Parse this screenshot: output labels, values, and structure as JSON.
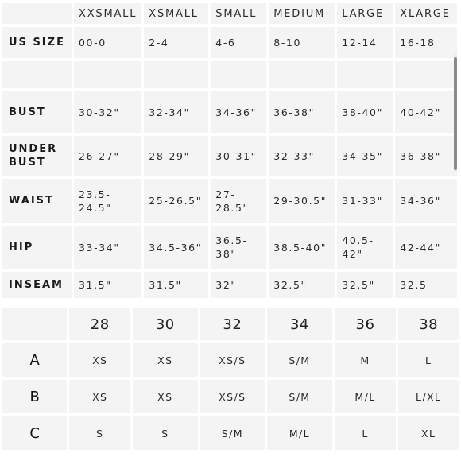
{
  "sizes": [
    "XXSMALL",
    "XSMALL",
    "SMALL",
    "MEDIUM",
    "LARGE",
    "XLARGE"
  ],
  "measurements": [
    {
      "label": "US SIZE",
      "values": [
        "00-0",
        "2-4",
        "4-6",
        "8-10",
        "12-14",
        "16-18"
      ]
    },
    {
      "label": "",
      "values": [
        "",
        "",
        "",
        "",
        "",
        ""
      ]
    },
    {
      "label": "BUST",
      "values": [
        "30-32\"",
        "32-34\"",
        "34-36\"",
        "36-38\"",
        "38-40\"",
        "40-42\""
      ]
    },
    {
      "label": "UNDER BUST",
      "values": [
        "26-27\"",
        "28-29\"",
        "30-31\"",
        "32-33\"",
        "34-35\"",
        "36-38\""
      ]
    },
    {
      "label": "WAIST",
      "values": [
        "23.5-24.5\"",
        "25-26.5\"",
        "27-28.5\"",
        "29-30.5\"",
        "31-33\"",
        "34-36\""
      ]
    },
    {
      "label": "HIP",
      "values": [
        "33-34\"",
        "34.5-36\"",
        "36.5-38\"",
        "38.5-40\"",
        "40.5-42\"",
        "42-44\""
      ]
    },
    {
      "label": "INSEAM",
      "values": [
        "31.5\"",
        "31.5\"",
        "32\"",
        "32.5\"",
        "32.5\"",
        "32.5"
      ]
    }
  ],
  "bra": {
    "bands": [
      "28",
      "30",
      "32",
      "34",
      "36",
      "38"
    ],
    "cups": [
      {
        "cup": "A",
        "values": [
          "XS",
          "XS",
          "XS/S",
          "S/M",
          "M",
          "L"
        ]
      },
      {
        "cup": "B",
        "values": [
          "XS",
          "XS",
          "XS/S",
          "S/M",
          "M/L",
          "L/XL"
        ]
      },
      {
        "cup": "C",
        "values": [
          "S",
          "S",
          "S/M",
          "M/L",
          "L",
          "XL"
        ]
      }
    ]
  }
}
